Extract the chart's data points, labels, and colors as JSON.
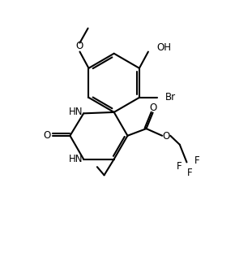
{
  "background_color": "#ffffff",
  "figsize": [
    2.9,
    3.22
  ],
  "dpi": 100,
  "xlim": [
    0,
    10
  ],
  "ylim": [
    0,
    11
  ]
}
